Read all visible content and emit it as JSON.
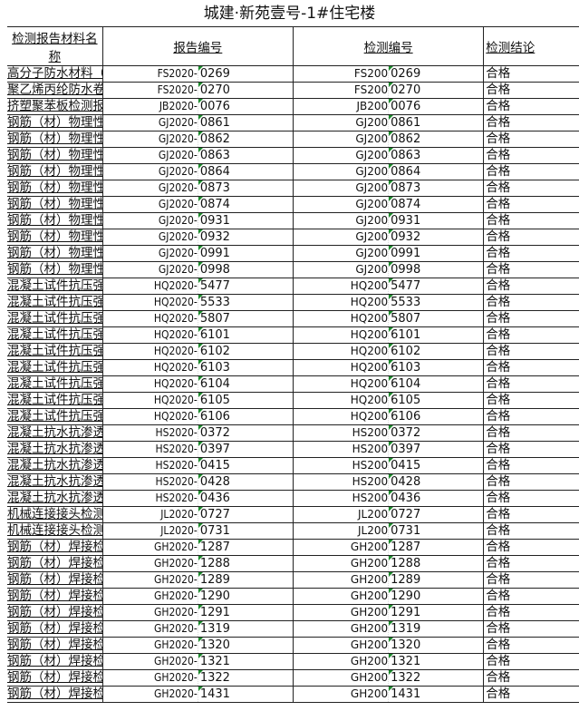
{
  "title": "城建·新苑壹号-1#住宅楼",
  "headers": {
    "name": "检测报告材料名称",
    "report_no": "报告编号",
    "test_no": "检测编号",
    "result": "检测结论"
  },
  "rows": [
    [
      "高分子防水材料（片材）检测报告",
      "FS2020-",
      "0269",
      "FS200",
      "0269",
      "合格"
    ],
    [
      "聚乙烯丙纶防水卷材用聚合物水泥粘结料检测报告",
      "FS2020-",
      "0270",
      "FS200",
      "0270",
      "合格"
    ],
    [
      "挤塑聚苯板检测报告",
      "JB2020-",
      "0076",
      "JB200",
      "0076",
      "合格"
    ],
    [
      "钢筋（材）物理性能检测报告",
      "GJ2020-",
      "0861",
      "GJ200",
      "0861",
      "合格"
    ],
    [
      "钢筋（材）物理性能检测报告",
      "GJ2020-",
      "0862",
      "GJ200",
      "0862",
      "合格"
    ],
    [
      "钢筋（材）物理性能检测报告",
      "GJ2020-",
      "0863",
      "GJ200",
      "0863",
      "合格"
    ],
    [
      "钢筋（材）物理性能检测报告",
      "GJ2020-",
      "0864",
      "GJ200",
      "0864",
      "合格"
    ],
    [
      "钢筋（材）物理性能检测报告",
      "GJ2020-",
      "0873",
      "GJ200",
      "0873",
      "合格"
    ],
    [
      "钢筋（材）物理性能检测报告",
      "GJ2020-",
      "0874",
      "GJ200",
      "0874",
      "合格"
    ],
    [
      "钢筋（材）物理性能检测报告",
      "GJ2020-",
      "0931",
      "GJ200",
      "0931",
      "合格"
    ],
    [
      "钢筋（材）物理性能检测报告",
      "GJ2020-",
      "0932",
      "GJ200",
      "0932",
      "合格"
    ],
    [
      "钢筋（材）物理性能检测报告",
      "GJ2020-",
      "0991",
      "GJ200",
      "0991",
      "合格"
    ],
    [
      "钢筋（材）物理性能检测报告",
      "GJ2020-",
      "0998",
      "GJ200",
      "0998",
      "合格"
    ],
    [
      "混凝土试件抗压强度检测报告",
      "HQ2020-",
      "5477",
      "HQ200",
      "5477",
      "合格"
    ],
    [
      "混凝土试件抗压强度检测报告",
      "HQ2020-",
      "5533",
      "HQ200",
      "5533",
      "合格"
    ],
    [
      "混凝土试件抗压强度检测报告",
      "HQ2020-",
      "5807",
      "HQ200",
      "5807",
      "合格"
    ],
    [
      "混凝土试件抗压强度检测报告",
      "HQ2020-",
      "6101",
      "HQ200",
      "6101",
      "合格"
    ],
    [
      "混凝土试件抗压强度检测报告",
      "HQ2020-",
      "6102",
      "HQ200",
      "6102",
      "合格"
    ],
    [
      "混凝土试件抗压强度检测报告",
      "HQ2020-",
      "6103",
      "HQ200",
      "6103",
      "合格"
    ],
    [
      "混凝土试件抗压强度检测报告",
      "HQ2020-",
      "6104",
      "HQ200",
      "6104",
      "合格"
    ],
    [
      "混凝土试件抗压强度检测报告",
      "HQ2020-",
      "6105",
      "HQ200",
      "6105",
      "合格"
    ],
    [
      "混凝土试件抗压强度检测报告",
      "HQ2020-",
      "6106",
      "HQ200",
      "6106",
      "合格"
    ],
    [
      "混凝土抗水抗渗透试验检测报告",
      "HS2020-",
      "0372",
      "HS200",
      "0372",
      "合格"
    ],
    [
      "混凝土抗水抗渗透试验检测报告",
      "HS2020-",
      "0397",
      "HS200",
      "0397",
      "合格"
    ],
    [
      "混凝土抗水抗渗透试验检测报告",
      "HS2020-",
      "0415",
      "HS200",
      "0415",
      "合格"
    ],
    [
      "混凝土抗水抗渗透试验检测报告",
      "HS2020-",
      "0428",
      "HS200",
      "0428",
      "合格"
    ],
    [
      "混凝土抗水抗渗透试验检测报告",
      "HS2020-",
      "0436",
      "HS200",
      "0436",
      "合格"
    ],
    [
      "机械连接接头检测报告",
      "JL2020-",
      "0727",
      "JL200",
      "0727",
      "合格"
    ],
    [
      "机械连接接头检测报告",
      "JL2020-",
      "0731",
      "JL200",
      "0731",
      "合格"
    ],
    [
      "钢筋（材）焊接检测报告",
      "GH2020-",
      "1287",
      "GH200",
      "1287",
      "合格"
    ],
    [
      "钢筋（材）焊接检测报告",
      "GH2020-",
      "1288",
      "GH200",
      "1288",
      "合格"
    ],
    [
      "钢筋（材）焊接检测报告",
      "GH2020-",
      "1289",
      "GH200",
      "1289",
      "合格"
    ],
    [
      "钢筋（材）焊接检测报告",
      "GH2020-",
      "1290",
      "GH200",
      "1290",
      "合格"
    ],
    [
      "钢筋（材）焊接检测报告",
      "GH2020-",
      "1291",
      "GH200",
      "1291",
      "合格"
    ],
    [
      "钢筋（材）焊接检测报告",
      "GH2020-",
      "1319",
      "GH200",
      "1319",
      "合格"
    ],
    [
      "钢筋（材）焊接检测报告",
      "GH2020-",
      "1320",
      "GH200",
      "1320",
      "合格"
    ],
    [
      "钢筋（材）焊接检测报告",
      "GH2020-",
      "1321",
      "GH200",
      "1321",
      "合格"
    ],
    [
      "钢筋（材）焊接检测报告",
      "GH2020-",
      "1322",
      "GH200",
      "1322",
      "合格"
    ],
    [
      "钢筋（材）焊接检测报告",
      "GH2020-",
      "1431",
      "GH200",
      "1431",
      "合格"
    ]
  ],
  "colors": {
    "cell_marker": "#1a8a2a"
  }
}
